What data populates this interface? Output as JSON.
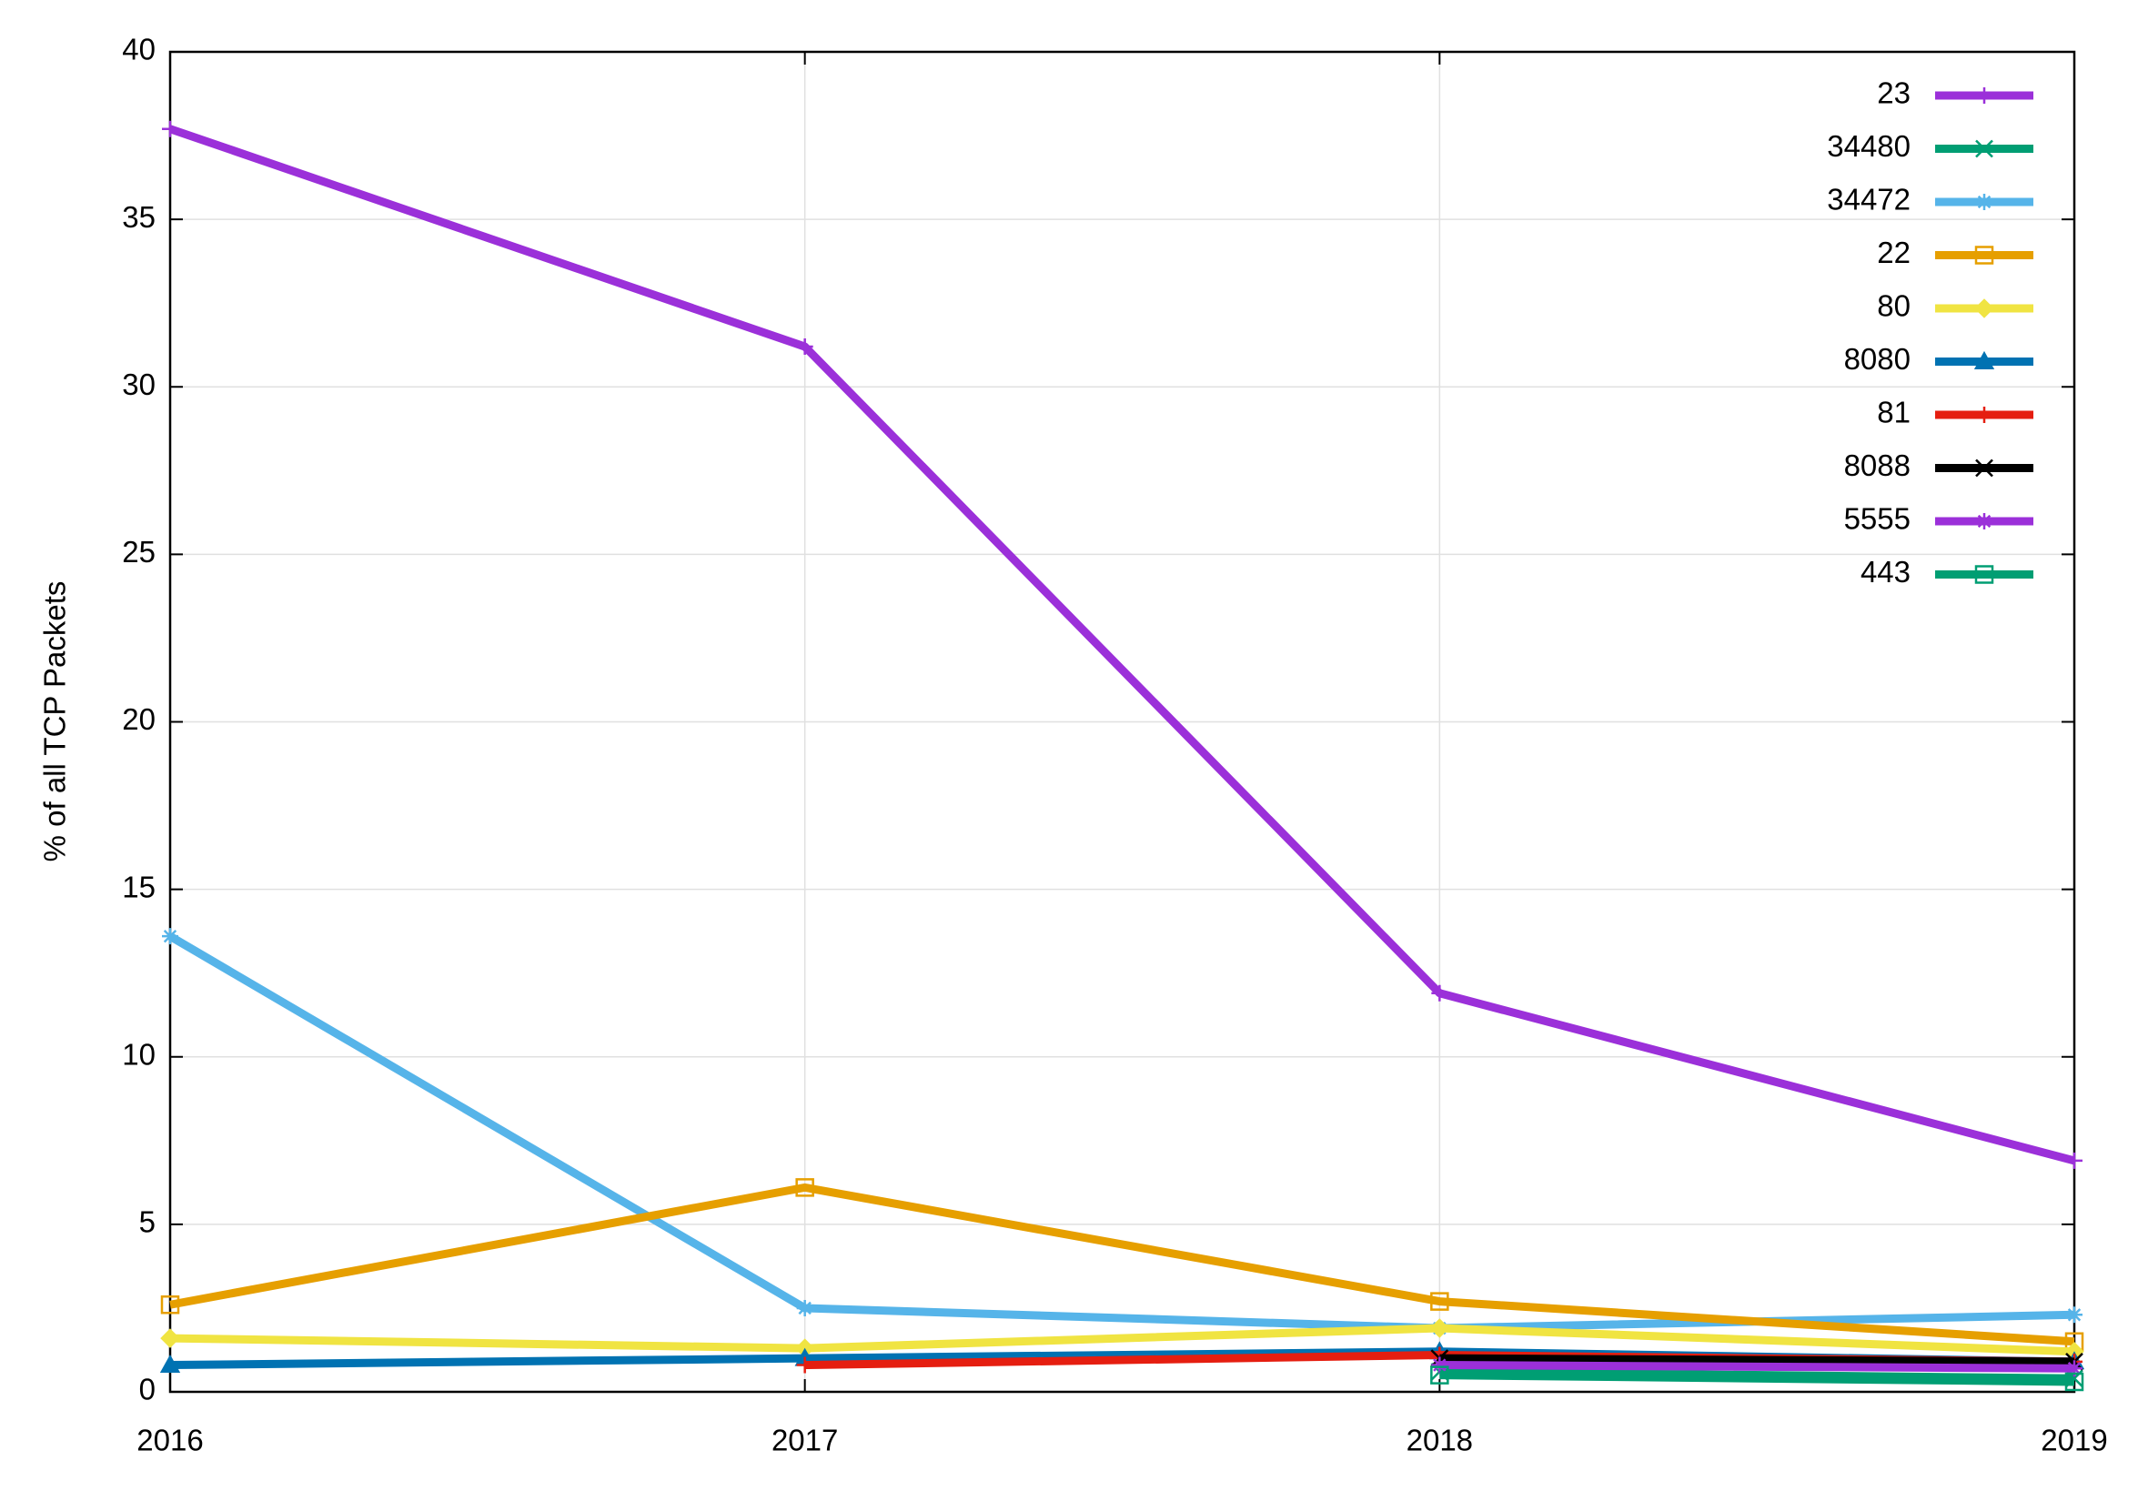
{
  "chart_data": {
    "type": "line",
    "y_label": "% of all TCP Packets",
    "x": [
      2016,
      2017,
      2018,
      2019
    ],
    "xlim": [
      2016,
      2019
    ],
    "xticks": [
      2016,
      2017,
      2018,
      2019
    ],
    "ylim": [
      0,
      40
    ],
    "yticks": [
      0,
      5,
      10,
      15,
      20,
      25,
      30,
      35,
      40
    ],
    "grid": true,
    "legend": "top-right",
    "series": [
      {
        "name": "23",
        "color": "#9b30d9",
        "marker": "plus",
        "values": [
          37.7,
          31.2,
          11.9,
          6.9
        ]
      },
      {
        "name": "34480",
        "color": "#009e73",
        "marker": "cross",
        "values": [
          null,
          null,
          0.6,
          0.4
        ]
      },
      {
        "name": "34472",
        "color": "#56b4e9",
        "marker": "star",
        "values": [
          13.6,
          2.5,
          1.9,
          2.3
        ]
      },
      {
        "name": "22",
        "color": "#e69f00",
        "marker": "square",
        "values": [
          2.6,
          6.1,
          2.7,
          1.5
        ]
      },
      {
        "name": "80",
        "color": "#f0e442",
        "marker": "diamond",
        "values": [
          1.6,
          1.3,
          1.9,
          1.2
        ]
      },
      {
        "name": "8080",
        "color": "#0072b2",
        "marker": "triangle",
        "values": [
          0.8,
          1.0,
          1.2,
          0.9
        ]
      },
      {
        "name": "81",
        "color": "#e51e10",
        "marker": "plus",
        "values": [
          null,
          0.8,
          1.1,
          0.9
        ]
      },
      {
        "name": "8088",
        "color": "#000000",
        "marker": "cross",
        "values": [
          null,
          null,
          1.0,
          0.9
        ]
      },
      {
        "name": "5555",
        "color": "#9b30d9",
        "marker": "star",
        "values": [
          null,
          null,
          0.8,
          0.7
        ]
      },
      {
        "name": "443",
        "color": "#009e73",
        "marker": "square",
        "values": [
          null,
          null,
          0.5,
          0.3
        ]
      }
    ]
  }
}
